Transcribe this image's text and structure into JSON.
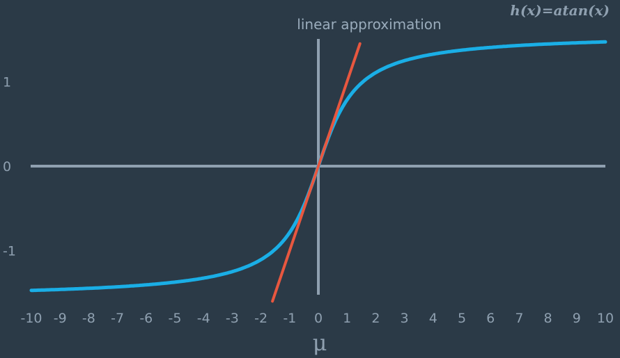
{
  "chart_data": {
    "type": "line",
    "title": "h(x)=atan(x)",
    "xlabel": "μ",
    "ylabel": "",
    "xlim": [
      -10,
      10
    ],
    "ylim": [
      -1.5,
      1.5
    ],
    "x_ticks": [
      "-10",
      "-9",
      "-8",
      "-7",
      "-6",
      "-5",
      "-4",
      "-3",
      "-2",
      "-1",
      "0",
      "1",
      "2",
      "3",
      "4",
      "5",
      "6",
      "7",
      "8",
      "9",
      "10"
    ],
    "y_ticks": [
      "1",
      "0",
      "-1"
    ],
    "grid": false,
    "series": [
      {
        "x": [
          -10,
          -9,
          -8,
          -7,
          -6,
          -5,
          -4,
          -3,
          -2,
          -1.5,
          -1,
          -0.5,
          0,
          0.5,
          1,
          1.5,
          2,
          3,
          4,
          5,
          6,
          7,
          8,
          9,
          10
        ],
        "values": [
          -1.471,
          -1.46,
          -1.446,
          -1.429,
          -1.406,
          -1.373,
          -1.326,
          -1.249,
          -1.107,
          -0.983,
          -0.785,
          -0.464,
          0,
          0.464,
          0.785,
          0.983,
          1.107,
          1.249,
          1.326,
          1.373,
          1.406,
          1.429,
          1.446,
          1.46,
          1.471
        ],
        "color": "#1aaee6"
      },
      {
        "x": [
          -1.6,
          1.45
        ],
        "values": [
          -1.6,
          1.45
        ],
        "color": "#e8573f"
      }
    ],
    "annotations": [
      {
        "text": "linear approximation"
      }
    ]
  }
}
